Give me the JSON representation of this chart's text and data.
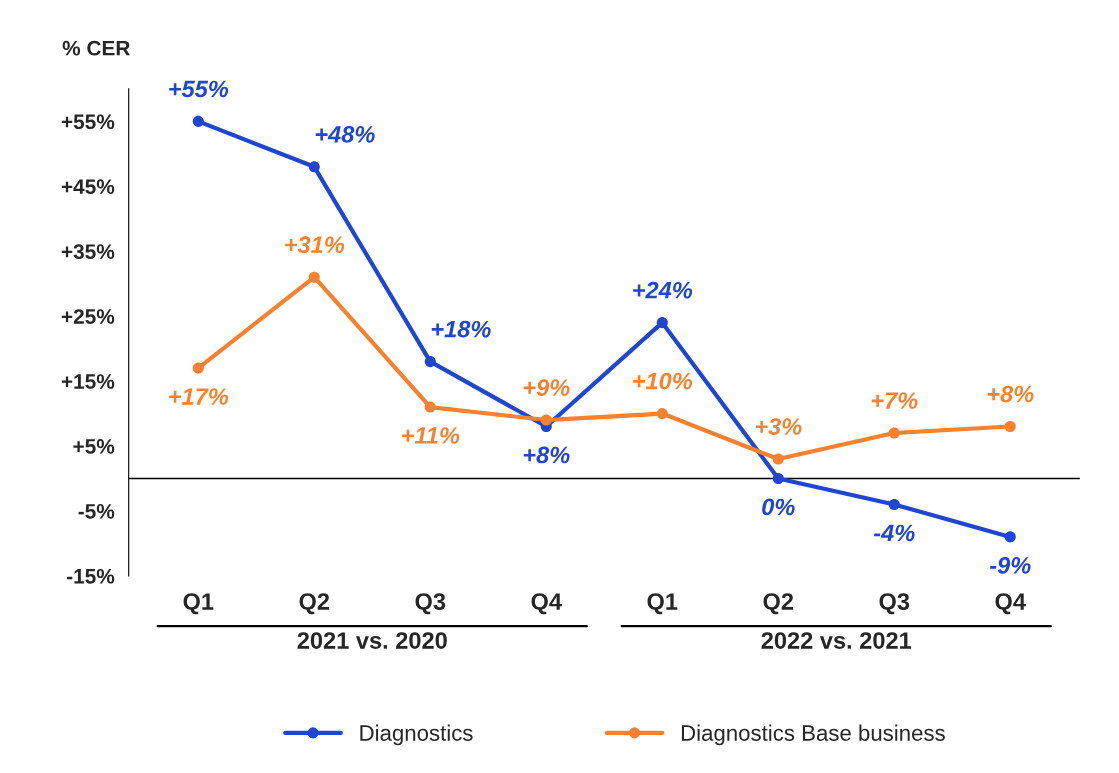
{
  "chart_data": {
    "type": "line",
    "ylabel": "% CER",
    "categories": [
      "Q1",
      "Q2",
      "Q3",
      "Q4",
      "Q1",
      "Q2",
      "Q3",
      "Q4"
    ],
    "series": [
      {
        "name": "Diagnostics",
        "color": "#1f45d1",
        "values": [
          55,
          48,
          18,
          8,
          24,
          0,
          -4,
          -9
        ],
        "value_labels": [
          "+55%",
          "+48%",
          "+18%",
          "+8%",
          "+24%",
          "0%",
          "-4%",
          "-9%"
        ]
      },
      {
        "name": "Diagnostics Base business",
        "color": "#f7812e",
        "values": [
          17,
          31,
          11,
          9,
          10,
          3,
          7,
          8
        ],
        "value_labels": [
          "+17%",
          "+31%",
          "+11%",
          "+9%",
          "+10%",
          "+3%",
          "+7%",
          "+8%"
        ]
      }
    ],
    "annotations": [
      "2021 vs. 2020",
      "2022 vs. 2021"
    ],
    "ylim": [
      -15,
      60
    ],
    "yticks": [
      {
        "value": -15,
        "label": "-15%"
      },
      {
        "value": -5,
        "label": "-5%"
      },
      {
        "value": 5,
        "label": "+5%"
      },
      {
        "value": 15,
        "label": "+15%"
      },
      {
        "value": 25,
        "label": "+25%"
      },
      {
        "value": 35,
        "label": "+35%"
      },
      {
        "value": 45,
        "label": "+45%"
      },
      {
        "value": 55,
        "label": "+55%"
      }
    ],
    "ref_lines": [
      {
        "axis": "y",
        "value": 0,
        "color": "#000000"
      }
    ],
    "marker": "circle",
    "grid": false,
    "legend": "bottom"
  }
}
